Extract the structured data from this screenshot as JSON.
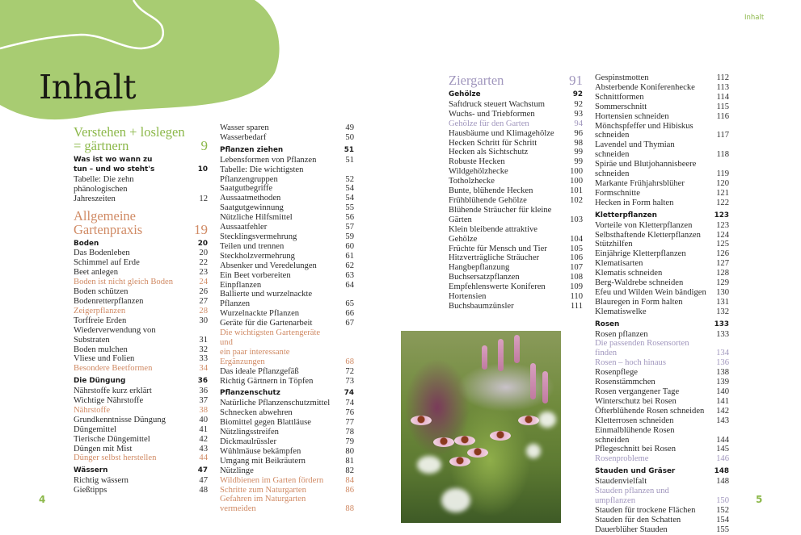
{
  "title": "Inhalt",
  "running_head": "Inhalt",
  "folio_left": "4",
  "folio_right": "5",
  "colors": {
    "blob": "#a8cc72",
    "green": "#8cb84a",
    "orange": "#d08a64",
    "purple": "#a096bd"
  },
  "photo": {
    "subject": "echinacea-and-grasses-photo"
  },
  "columns": [
    [
      {
        "type": "section",
        "theme": "green",
        "text": "Verstehen + loslegen\n= gärtnern",
        "page": "9"
      },
      {
        "type": "group",
        "text": "Was ist wo wann zu\ntun – und wo steht's",
        "page": "10"
      },
      {
        "type": "entry",
        "text": "Tabelle: Die zehn phänologischen\nJahreszeiten",
        "page": "12"
      },
      {
        "type": "section",
        "theme": "orange",
        "text": "Allgemeine\nGartenpraxis",
        "page": "19"
      },
      {
        "type": "group",
        "text": "Boden",
        "page": "20"
      },
      {
        "type": "entry",
        "text": "Das Bodenleben",
        "page": "20"
      },
      {
        "type": "entry",
        "text": "Schimmel auf Erde",
        "page": "22"
      },
      {
        "type": "entry",
        "text": "Beet anlegen",
        "page": "23"
      },
      {
        "type": "entry",
        "hl": "orange",
        "text": "Boden ist nicht gleich Boden",
        "page": "24"
      },
      {
        "type": "entry",
        "text": "Boden schützen",
        "page": "26"
      },
      {
        "type": "entry",
        "text": "Bodenretterpflanzen",
        "page": "27"
      },
      {
        "type": "entry",
        "hl": "orange",
        "text": "Zeigerpflanzen",
        "page": "28"
      },
      {
        "type": "entry",
        "text": "Torffreie Erden",
        "page": "30"
      },
      {
        "type": "entry",
        "text": "Wiederverwendung von Substraten",
        "page": "31"
      },
      {
        "type": "entry",
        "text": "Boden mulchen",
        "page": "32"
      },
      {
        "type": "entry",
        "text": "Vliese und Folien",
        "page": "33"
      },
      {
        "type": "entry",
        "hl": "orange",
        "text": "Besondere Beetformen",
        "page": "34"
      },
      {
        "type": "group",
        "text": "Die Düngung",
        "page": "36"
      },
      {
        "type": "entry",
        "text": "Nährstoffe kurz erklärt",
        "page": "36"
      },
      {
        "type": "entry",
        "text": "Wichtige Nährstoffe",
        "page": "37"
      },
      {
        "type": "entry",
        "hl": "orange",
        "text": "Nährstoffe",
        "page": "38"
      },
      {
        "type": "entry",
        "text": "Grundkenntnisse Düngung",
        "page": "40"
      },
      {
        "type": "entry",
        "text": "Düngemittel",
        "page": "41"
      },
      {
        "type": "entry",
        "text": "Tierische Düngemittel",
        "page": "42"
      },
      {
        "type": "entry",
        "text": "Düngen mit Mist",
        "page": "43"
      },
      {
        "type": "entry",
        "hl": "orange",
        "text": "Dünger selbst herstellen",
        "page": "44"
      },
      {
        "type": "group",
        "text": "Wässern",
        "page": "47"
      },
      {
        "type": "entry",
        "text": "Richtig wässern",
        "page": "47"
      },
      {
        "type": "entry",
        "text": "Gießtipps",
        "page": "48"
      }
    ],
    [
      {
        "type": "entry",
        "text": "Wasser sparen",
        "page": "49"
      },
      {
        "type": "entry",
        "text": "Wasserbedarf",
        "page": "50"
      },
      {
        "type": "group",
        "text": "Pflanzen ziehen",
        "page": "51"
      },
      {
        "type": "entry",
        "text": "Lebensformen von Pflanzen",
        "page": "51"
      },
      {
        "type": "entry",
        "text": "Tabelle: Die wichtigsten Pflanzengruppen",
        "page": "52"
      },
      {
        "type": "entry",
        "text": "Saatgutbegriffe",
        "page": "54"
      },
      {
        "type": "entry",
        "text": "Aussaatmethoden",
        "page": "54"
      },
      {
        "type": "entry",
        "text": "Saatgutgewinnung",
        "page": "55"
      },
      {
        "type": "entry",
        "text": "Nützliche Hilfsmittel",
        "page": "56"
      },
      {
        "type": "entry",
        "text": "Aussaatfehler",
        "page": "57"
      },
      {
        "type": "entry",
        "text": "Stecklingsvermehrung",
        "page": "59"
      },
      {
        "type": "entry",
        "text": "Teilen und trennen",
        "page": "60"
      },
      {
        "type": "entry",
        "text": "Steckholzvermehrung",
        "page": "61"
      },
      {
        "type": "entry",
        "text": "Absenker und Veredelungen",
        "page": "62"
      },
      {
        "type": "entry",
        "text": "Ein Beet vorbereiten",
        "page": "63"
      },
      {
        "type": "entry",
        "text": "Einpflanzen",
        "page": "64"
      },
      {
        "type": "entry",
        "text": "Ballierte und wurzelnackte Pflanzen",
        "page": "65"
      },
      {
        "type": "entry",
        "text": "Wurzelnackte Pflanzen",
        "page": "66"
      },
      {
        "type": "entry",
        "text": "Geräte für die Gartenarbeit",
        "page": "67"
      },
      {
        "type": "entry",
        "hl": "orange",
        "text": "Die wichtigsten Gartengeräte und\nein paar interessante Ergänzungen",
        "page": "68"
      },
      {
        "type": "entry",
        "text": "Das ideale Pflanzgefäß",
        "page": "72"
      },
      {
        "type": "entry",
        "text": "Richtig Gärtnern in Töpfen",
        "page": "73"
      },
      {
        "type": "group",
        "text": "Pflanzenschutz",
        "page": "74"
      },
      {
        "type": "entry",
        "text": "Natürliche Pflanzenschutzmittel",
        "page": "74"
      },
      {
        "type": "entry",
        "text": "Schnecken abwehren",
        "page": "76"
      },
      {
        "type": "entry",
        "text": "Biomittel gegen Blattläuse",
        "page": "77"
      },
      {
        "type": "entry",
        "text": "Nützlingsstreifen",
        "page": "78"
      },
      {
        "type": "entry",
        "text": "Dickmaulrüssler",
        "page": "79"
      },
      {
        "type": "entry",
        "text": "Wühlmäuse bekämpfen",
        "page": "80"
      },
      {
        "type": "entry",
        "text": "Umgang mit Beikräutern",
        "page": "81"
      },
      {
        "type": "entry",
        "text": "Nützlinge",
        "page": "82"
      },
      {
        "type": "entry",
        "hl": "orange",
        "text": "Wildbienen im Garten fördern",
        "page": "84"
      },
      {
        "type": "entry",
        "hl": "orange",
        "text": "Schritte zum Naturgarten",
        "page": "86"
      },
      {
        "type": "entry",
        "hl": "orange",
        "text": "Gefahren im Naturgarten vermeiden",
        "page": "88"
      }
    ],
    [
      {
        "type": "section",
        "theme": "purple",
        "text": "Ziergarten",
        "page": "91"
      },
      {
        "type": "group",
        "text": "Gehölze",
        "page": "92"
      },
      {
        "type": "entry",
        "text": "Saftdruck steuert Wachstum",
        "page": "92"
      },
      {
        "type": "entry",
        "text": "Wuchs- und Triebformen",
        "page": "93"
      },
      {
        "type": "entry",
        "hl": "purple",
        "text": "Gehölze für den Garten",
        "page": "94"
      },
      {
        "type": "entry",
        "text": "Hausbäume und Klimagehölze",
        "page": "96"
      },
      {
        "type": "entry",
        "text": "Hecken Schritt für Schritt",
        "page": "98"
      },
      {
        "type": "entry",
        "text": "Hecken als Sichtschutz",
        "page": "99"
      },
      {
        "type": "entry",
        "text": "Robuste Hecken",
        "page": "99"
      },
      {
        "type": "entry",
        "text": "Wildgehölzhecke",
        "page": "100"
      },
      {
        "type": "entry",
        "text": "Totholzhecke",
        "page": "100"
      },
      {
        "type": "entry",
        "text": "Bunte, blühende Hecken",
        "page": "101"
      },
      {
        "type": "entry",
        "text": "Frühblühende Gehölze",
        "page": "102"
      },
      {
        "type": "entry",
        "text": "Blühende Sträucher für kleine Gärten",
        "page": "103"
      },
      {
        "type": "entry",
        "text": "Klein bleibende attraktive Gehölze",
        "page": "104"
      },
      {
        "type": "entry",
        "text": "Früchte für Mensch und Tier",
        "page": "105"
      },
      {
        "type": "entry",
        "text": "Hitzverträgliche Sträucher",
        "page": "106"
      },
      {
        "type": "entry",
        "text": "Hangbepflanzung",
        "page": "107"
      },
      {
        "type": "entry",
        "text": "Buchsersatzpflanzen",
        "page": "108"
      },
      {
        "type": "entry",
        "text": "Empfehlenswerte Koniferen",
        "page": "109"
      },
      {
        "type": "entry",
        "text": "Hortensien",
        "page": "110"
      },
      {
        "type": "entry",
        "text": "Buchsbaumzünsler",
        "page": "111"
      }
    ],
    [
      {
        "type": "entry",
        "text": "Gespinstmotten",
        "page": "112"
      },
      {
        "type": "entry",
        "text": "Absterbende Koniferenhecke",
        "page": "113"
      },
      {
        "type": "entry",
        "text": "Schnittformen",
        "page": "114"
      },
      {
        "type": "entry",
        "text": "Sommerschnitt",
        "page": "115"
      },
      {
        "type": "entry",
        "text": "Hortensien schneiden",
        "page": "116"
      },
      {
        "type": "entry",
        "text": "Mönchspfeffer und Hibiskus schneiden",
        "page": "117"
      },
      {
        "type": "entry",
        "text": "Lavendel und Thymian schneiden",
        "page": "118"
      },
      {
        "type": "entry",
        "text": "Spiräe und Blutjohannisbeere schneiden",
        "page": "119"
      },
      {
        "type": "entry",
        "text": "Markante Frühjahrsblüher",
        "page": "120"
      },
      {
        "type": "entry",
        "text": "Formschnitte",
        "page": "121"
      },
      {
        "type": "entry",
        "text": "Hecken in Form halten",
        "page": "122"
      },
      {
        "type": "group",
        "text": "Kletterpflanzen",
        "page": "123"
      },
      {
        "type": "entry",
        "text": "Vorteile von Kletterpflanzen",
        "page": "123"
      },
      {
        "type": "entry",
        "text": "Selbsthaftende Kletterpflanzen",
        "page": "124"
      },
      {
        "type": "entry",
        "text": "Stützhilfen",
        "page": "125"
      },
      {
        "type": "entry",
        "text": "Einjährige Kletterpflanzen",
        "page": "126"
      },
      {
        "type": "entry",
        "text": "Klematisarten",
        "page": "127"
      },
      {
        "type": "entry",
        "text": "Klematis schneiden",
        "page": "128"
      },
      {
        "type": "entry",
        "text": "Berg-Waldrebe schneiden",
        "page": "129"
      },
      {
        "type": "entry",
        "text": "Efeu und Wilden Wein bändigen",
        "page": "130"
      },
      {
        "type": "entry",
        "text": "Blauregen in Form halten",
        "page": "131"
      },
      {
        "type": "entry",
        "text": "Klematiswelke",
        "page": "132"
      },
      {
        "type": "group",
        "text": "Rosen",
        "page": "133"
      },
      {
        "type": "entry",
        "text": "Rosen pflanzen",
        "page": "133"
      },
      {
        "type": "entry",
        "hl": "purple",
        "text": "Die passenden Rosensorten finden",
        "page": "134"
      },
      {
        "type": "entry",
        "hl": "purple",
        "text": "Rosen – hoch hinaus",
        "page": "136"
      },
      {
        "type": "entry",
        "text": "Rosenpflege",
        "page": "138"
      },
      {
        "type": "entry",
        "text": "Rosenstämmchen",
        "page": "139"
      },
      {
        "type": "entry",
        "text": "Rosen vergangener Tage",
        "page": "140"
      },
      {
        "type": "entry",
        "text": "Winterschutz bei Rosen",
        "page": "141"
      },
      {
        "type": "entry",
        "text": "Öfterblühende Rosen schneiden",
        "page": "142"
      },
      {
        "type": "entry",
        "text": "Kletterrosen schneiden",
        "page": "143"
      },
      {
        "type": "entry",
        "text": "Einmalblühende Rosen schneiden",
        "page": "144"
      },
      {
        "type": "entry",
        "text": "Pflegeschnitt bei Rosen",
        "page": "145"
      },
      {
        "type": "entry",
        "hl": "purple",
        "text": "Rosenprobleme",
        "page": "146"
      },
      {
        "type": "group",
        "text": "Stauden und Gräser",
        "page": "148"
      },
      {
        "type": "entry",
        "text": "Staudenvielfalt",
        "page": "148"
      },
      {
        "type": "entry",
        "hl": "purple",
        "text": "Stauden pflanzen und umpflanzen",
        "page": "150"
      },
      {
        "type": "entry",
        "text": "Stauden für trockene Flächen",
        "page": "152"
      },
      {
        "type": "entry",
        "text": "Stauden für den Schatten",
        "page": "154"
      },
      {
        "type": "entry",
        "text": "Dauerblüher Stauden",
        "page": "155"
      }
    ]
  ]
}
